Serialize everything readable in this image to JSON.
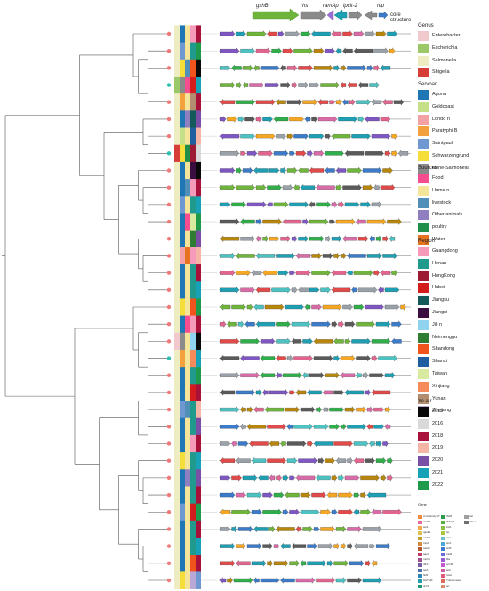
{
  "core_structure": {
    "genes": [
      "gshB",
      "rhs",
      "ramAp",
      "lpcit-2",
      "nlp"
    ],
    "caption": "core structure"
  },
  "legend": {
    "genus": {
      "title": "Genus",
      "items": [
        {
          "label": "Enterobacter",
          "color": "#f1c9cc"
        },
        {
          "label": "Escherichia",
          "color": "#9bc96a"
        },
        {
          "label": "Salmonella",
          "color": "#ededc1"
        },
        {
          "label": "Shigella",
          "color": "#d63c38"
        }
      ]
    },
    "serovar": {
      "title": "Servoar",
      "items": [
        {
          "label": "Agona",
          "color": "#1f76b4"
        },
        {
          "label": "Goldcoast",
          "color": "#c6e08a"
        },
        {
          "label": "Londo n",
          "color": "#f2a2a4"
        },
        {
          "label": "Paratyphi B",
          "color": "#f3a03f"
        },
        {
          "label": "Saintpaul",
          "color": "#6f98d2"
        },
        {
          "label": "Schwarzengrund",
          "color": "#f5dd3a"
        },
        {
          "label": "None-Salmonella",
          "color": "#8a8a8a"
        }
      ]
    },
    "sources": {
      "title": "Sources",
      "items": [
        {
          "label": "Food",
          "color": "#f54d8f"
        },
        {
          "label": "Huma n",
          "color": "#f5e59a"
        },
        {
          "label": "livestock",
          "color": "#4f8fb8"
        },
        {
          "label": "Other   animals",
          "color": "#8f7fc0"
        },
        {
          "label": "poultry",
          "color": "#1f8f4a"
        },
        {
          "label": "Water",
          "color": "#e6731f"
        }
      ]
    },
    "region": {
      "title": "Region",
      "items": [
        {
          "label": "Guangdong",
          "color": "#f59ab8"
        },
        {
          "label": "Henan",
          "color": "#1f9a8c"
        },
        {
          "label": "HongKong",
          "color": "#9e1b34"
        },
        {
          "label": "Hubei",
          "color": "#d41c1c"
        },
        {
          "label": "Jiangsu",
          "color": "#145a5a"
        },
        {
          "label": "Jiangxi",
          "color": "#3a0f3f"
        },
        {
          "label": "Jili n",
          "color": "#8fd3f0"
        },
        {
          "label": "Neimenggu",
          "color": "#2e7d32"
        },
        {
          "label": "Shandong",
          "color": "#f0541c"
        },
        {
          "label": "Shanxi",
          "color": "#1f5f9f"
        },
        {
          "label": "Taiwan",
          "color": "#d8eaa0"
        },
        {
          "label": "Xinjiang",
          "color": "#f58a5a"
        },
        {
          "label": "Yunan",
          "color": "#b38d6f"
        },
        {
          "label": "Zhejiang",
          "color": "#b9a8d6"
        }
      ]
    },
    "year": {
      "title": "Ye a r",
      "items": [
        {
          "label": "2015",
          "color": "#0a0a0a"
        },
        {
          "label": "2016",
          "color": "#d9d9d9"
        },
        {
          "label": "2018",
          "color": "#a8123a"
        },
        {
          "label": "2019",
          "color": "#f5b6a6"
        },
        {
          "label": "2020",
          "color": "#7a4fa6"
        },
        {
          "label": "2021",
          "color": "#17a2b8"
        },
        {
          "label": "2022",
          "color": "#1f9a4a"
        }
      ]
    },
    "gene_colors": {
      "title": "Gene",
      "items": [
        {
          "label": "ccrA family AT",
          "color": "#f08a3c"
        },
        {
          "label": "cmlA1",
          "color": "#e06d9a"
        },
        {
          "label": "sul1",
          "color": "#f0a94a"
        },
        {
          "label": "qacE1",
          "color": "#d9c24a"
        },
        {
          "label": "aadA1",
          "color": "#c0a030"
        },
        {
          "label": "tnpA",
          "color": "#d98a40"
        },
        {
          "label": "catA2",
          "color": "#b05a2a"
        },
        {
          "label": "aac3",
          "color": "#c23b6a"
        },
        {
          "label": "mphA",
          "color": "#9c4f8c"
        },
        {
          "label": "dfrA",
          "color": "#7a5aa0"
        },
        {
          "label": "tetA",
          "color": "#4a6fa8"
        },
        {
          "label": "floR",
          "color": "#2f86b8"
        },
        {
          "label": "blaTEM",
          "color": "#22a0a8"
        },
        {
          "label": "qnrS",
          "color": "#1e9a7a"
        },
        {
          "label": "IS26",
          "color": "#2d9a4a"
        },
        {
          "label": "ISEcp1",
          "color": "#5ab04a"
        },
        {
          "label": "intI1",
          "color": "#8ac04a"
        },
        {
          "label": "hp",
          "color": "#a8c83a"
        },
        {
          "label": "mer",
          "color": "#6fc0c8"
        },
        {
          "label": "strA",
          "color": "#48a8d8"
        },
        {
          "label": "strB",
          "color": "#3a7ad0"
        },
        {
          "label": "tnpR",
          "color": "#6a6ad8"
        },
        {
          "label": "bla",
          "color": "#9a5ad8"
        },
        {
          "label": "ermB",
          "color": "#c05ad0"
        },
        {
          "label": "aph",
          "color": "#d05aa8"
        },
        {
          "label": "fosA",
          "color": "#e05a7a"
        },
        {
          "label": "Transposase",
          "color": "#e06a5a"
        },
        {
          "label": "arr",
          "color": "#d88a6a"
        },
        {
          "label": "cat",
          "color": "#a0a0a0"
        },
        {
          "label": "other",
          "color": "#707070"
        }
      ]
    }
  },
  "gene_palette": [
    "#2fae4a",
    "#1e9fb3",
    "#e2658f",
    "#7e57c2",
    "#f5a623",
    "#6fb53c",
    "#3b7bc9",
    "#9aa1a8",
    "#e24a4a",
    "#4cc2c2",
    "#b8860b",
    "#5a5a5a",
    "#d96ca8"
  ],
  "tree": {
    "leaf_colors": [
      "#f07a7a",
      "#f07a7a",
      "#f07a7a",
      "#2fbfb0",
      "#f07a7a",
      "#f07a7a",
      "#f07a7a",
      "#2fbfb0",
      "#f07a7a",
      "#f07a7a",
      "#f07a7a",
      "#f07a7a",
      "#f07a7a",
      "#f07a7a",
      "#f07a7a",
      "#f07a7a",
      "#f07a7a",
      "#f07a7a",
      "#f07a7a",
      "#2fbfb0",
      "#f07a7a",
      "#f07a7a",
      "#f07a7a",
      "#f07a7a",
      "#f07a7a",
      "#f07a7a",
      "#f07a7a",
      "#f07a7a",
      "#f07a7a",
      "#f07a7a",
      "#f07a7a",
      "#f07a7a",
      "#f07a7a"
    ]
  },
  "metadata_strips": [
    [
      "#ededc1",
      "#1f76b4",
      "#f5e59a",
      "#f59ab8",
      "#a8123a"
    ],
    [
      "#ededc1",
      "#6f98d2",
      "#f5e59a",
      "#1f9a8c",
      "#1f9a4a"
    ],
    [
      "#ededc1",
      "#f5dd3a",
      "#4f8fb8",
      "#f0541c",
      "#0a0a0a"
    ],
    [
      "#9bc96a",
      "#8a8a8a",
      "#f54d8f",
      "#d41c1c",
      "#17a2b8"
    ],
    [
      "#ededc1",
      "#f3a03f",
      "#f5e59a",
      "#b38d6f",
      "#a8123a"
    ],
    [
      "#ededc1",
      "#1f76b4",
      "#8f7fc0",
      "#145a5a",
      "#7a4fa6"
    ],
    [
      "#ededc1",
      "#c6e08a",
      "#f5e59a",
      "#1f5f9f",
      "#f5b6a6"
    ],
    [
      "#d63c38",
      "#f5dd3a",
      "#1f8f4a",
      "#9e1b34",
      "#d9d9d9"
    ],
    [
      "#ededc1",
      "#1f76b4",
      "#f5e59a",
      "#3a0f3f",
      "#0a0a0a"
    ],
    [
      "#ededc1",
      "#1f76b4",
      "#4f8fb8",
      "#f59ab8",
      "#a8123a"
    ],
    [
      "#ededc1",
      "#6f98d2",
      "#f5e59a",
      "#1f9a8c",
      "#17a2b8"
    ],
    [
      "#ededc1",
      "#1f76b4",
      "#f54d8f",
      "#d8eaa0",
      "#1f9a4a"
    ],
    [
      "#ededc1",
      "#1f76b4",
      "#f5e59a",
      "#2e7d32",
      "#7a4fa6"
    ],
    [
      "#ededc1",
      "#f2a2a4",
      "#e6731f",
      "#f59ab8",
      "#f5b6a6"
    ],
    [
      "#ededc1",
      "#1f76b4",
      "#f5e59a",
      "#1f9a8c",
      "#a8123a"
    ],
    [
      "#ededc1",
      "#1f76b4",
      "#f5e59a",
      "#1f9a8c",
      "#17a2b8"
    ],
    [
      "#ededc1",
      "#f5dd3a",
      "#f5e59a",
      "#f0541c",
      "#1f9a4a"
    ],
    [
      "#ededc1",
      "#1f76b4",
      "#f54d8f",
      "#f59ab8",
      "#a8123a"
    ],
    [
      "#f1c9cc",
      "#8a8a8a",
      "#f5e59a",
      "#8fd3f0",
      "#0a0a0a"
    ],
    [
      "#ededc1",
      "#f3a03f",
      "#f5e59a",
      "#f58a5a",
      "#17a2b8"
    ],
    [
      "#ededc1",
      "#1f76b4",
      "#f5e59a",
      "#1f9a8c",
      "#1f9a4a"
    ],
    [
      "#ededc1",
      "#1f76b4",
      "#f5e59a",
      "#d41c1c",
      "#a8123a"
    ],
    [
      "#ededc1",
      "#6f98d2",
      "#4f8fb8",
      "#1f9a8c",
      "#f5b6a6"
    ],
    [
      "#ededc1",
      "#1f76b4",
      "#f5e59a",
      "#1f9a8c",
      "#7a4fa6"
    ],
    [
      "#ededc1",
      "#1f76b4",
      "#f5e59a",
      "#f59ab8",
      "#a8123a"
    ],
    [
      "#ededc1",
      "#f5dd3a",
      "#f5e59a",
      "#1f9a8c",
      "#17a2b8"
    ],
    [
      "#ededc1",
      "#1f76b4",
      "#8f7fc0",
      "#1f9a8c",
      "#7a4fa6"
    ],
    [
      "#ededc1",
      "#1f76b4",
      "#f5e59a",
      "#1f9a8c",
      "#a8123a"
    ],
    [
      "#ededc1",
      "#6f98d2",
      "#f5e59a",
      "#d41c1c",
      "#1f9a4a"
    ],
    [
      "#ededc1",
      "#1f76b4",
      "#f5e59a",
      "#1f9a8c",
      "#a8123a"
    ],
    [
      "#ededc1",
      "#1f76b4",
      "#f5e59a",
      "#1f9a8c",
      "#17a2b8"
    ],
    [
      "#ededc1",
      "#1f76b4",
      "#f5e59a",
      "#f0541c",
      "#a8123a"
    ],
    [
      "#ededc1",
      "#f5dd3a",
      "#f5e59a",
      "#b9a8d6",
      "#6f98d2"
    ]
  ]
}
